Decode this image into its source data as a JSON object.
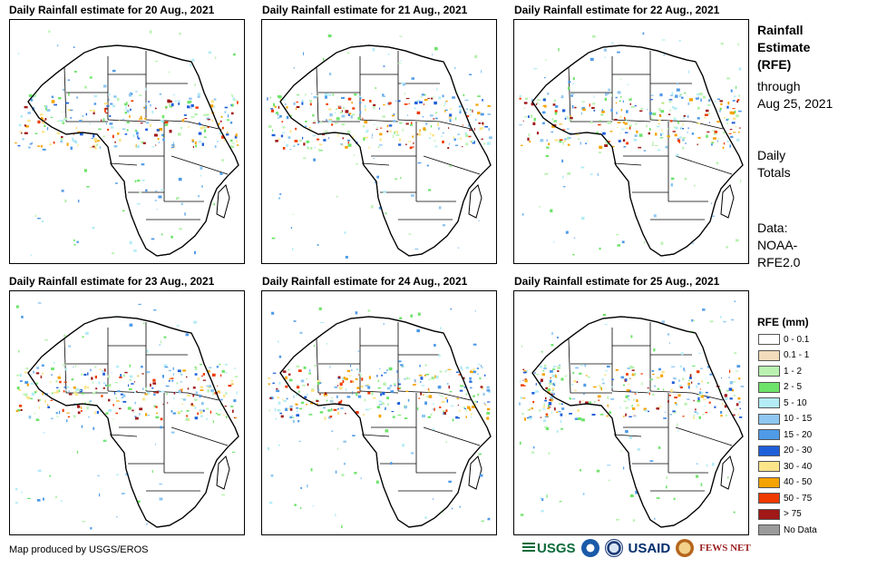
{
  "panels": [
    {
      "title": "Daily Rainfall estimate for 20 Aug., 2021"
    },
    {
      "title": "Daily Rainfall estimate for 21 Aug., 2021"
    },
    {
      "title": "Daily Rainfall estimate for 22 Aug., 2021"
    },
    {
      "title": "Daily Rainfall estimate for 23 Aug., 2021"
    },
    {
      "title": "Daily Rainfall estimate for 24 Aug., 2021"
    },
    {
      "title": "Daily Rainfall estimate for 25 Aug., 2021"
    }
  ],
  "sidebar": {
    "title_lines": [
      "Rainfall",
      "Estimate",
      "(RFE)"
    ],
    "through_lines": [
      "through",
      "Aug 25, 2021"
    ],
    "totals_lines": [
      "Daily",
      "Totals"
    ],
    "data_lines": [
      "Data:",
      "NOAA-",
      "RFE2.0"
    ]
  },
  "legend": {
    "title": "RFE (mm)",
    "items": [
      {
        "label": "0 - 0.1",
        "color": "#ffffff"
      },
      {
        "label": "0.1 - 1",
        "color": "#f2dcbb"
      },
      {
        "label": "1 - 2",
        "color": "#b9f2b0"
      },
      {
        "label": "2 - 5",
        "color": "#6ee36a"
      },
      {
        "label": "5 - 10",
        "color": "#b3ecf5"
      },
      {
        "label": "10 - 15",
        "color": "#8fc7f2"
      },
      {
        "label": "15 - 20",
        "color": "#4f9be8"
      },
      {
        "label": "20 - 30",
        "color": "#1e5fd9"
      },
      {
        "label": "30 - 40",
        "color": "#fbe58a"
      },
      {
        "label": "40 - 50",
        "color": "#f5a300"
      },
      {
        "label": "50 - 75",
        "color": "#ef3a00"
      },
      {
        "label": "> 75",
        "color": "#a01818"
      },
      {
        "label": "No Data",
        "color": "#9a9a9a"
      }
    ]
  },
  "credit": "Map produced by USGS/EROS",
  "logos": {
    "usgs": "USGS",
    "usaid": "USAID",
    "fews": "FEWS NET"
  }
}
